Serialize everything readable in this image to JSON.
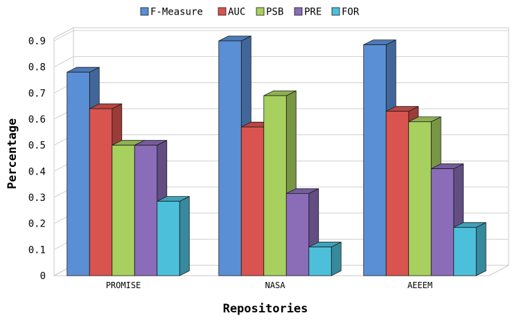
{
  "chart_data": {
    "type": "bar",
    "title": "",
    "xlabel": "Repositories",
    "ylabel": "Percentage",
    "categories": [
      "PROMISE",
      "NASA",
      "AEEEM"
    ],
    "ylim": [
      0,
      0.9
    ],
    "yticks": [
      "0",
      "0.1",
      "0.2",
      "0.3",
      "0.4",
      "0.5",
      "0.6",
      "0.7",
      "0.8",
      "0.9"
    ],
    "grid": true,
    "legend": "top-center",
    "series": [
      {
        "name": "F-Measure",
        "color": "#5a8fd6",
        "values": [
          0.78,
          0.9,
          0.885
        ]
      },
      {
        "name": "AUC",
        "color": "#d9534f",
        "values": [
          0.64,
          0.57,
          0.63
        ]
      },
      {
        "name": "PSB",
        "color": "#a8d05f",
        "values": [
          0.5,
          0.69,
          0.59
        ]
      },
      {
        "name": "PRE",
        "color": "#8a6cb8",
        "values": [
          0.5,
          0.315,
          0.41
        ]
      },
      {
        "name": "FOR",
        "color": "#4cbfdb",
        "values": [
          0.285,
          0.11,
          0.185
        ]
      }
    ]
  }
}
